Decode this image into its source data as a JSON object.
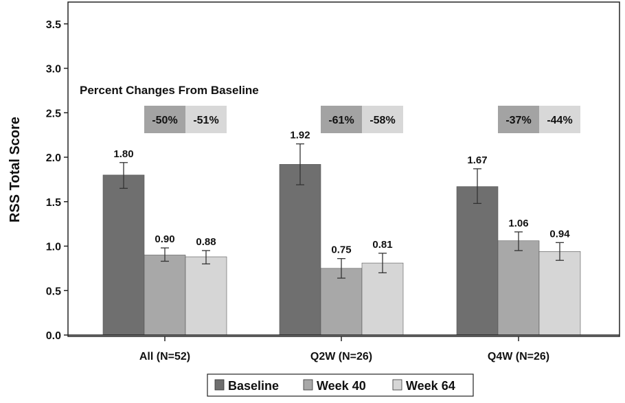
{
  "chart_data": {
    "type": "bar",
    "title": "",
    "xlabel": "",
    "ylabel": "RSS Total Score",
    "ylim": [
      0,
      3.6
    ],
    "yticks": [
      "0.0",
      "0.5",
      "1.0",
      "1.5",
      "2.0",
      "2.5",
      "3.0",
      "3.5"
    ],
    "categories": [
      "All (N=52)",
      "Q2W (N=26)",
      "Q4W (N=26)"
    ],
    "series": [
      {
        "name": "Baseline",
        "color": "#6f6f6f",
        "values": [
          1.8,
          1.92,
          1.67
        ],
        "labels": [
          "1.80",
          "1.92",
          "1.67"
        ],
        "err_low": [
          1.65,
          1.69,
          1.48
        ],
        "err_high": [
          1.94,
          2.15,
          1.87
        ]
      },
      {
        "name": "Week 40",
        "color": "#a8a8a8",
        "values": [
          0.9,
          0.75,
          1.06
        ],
        "labels": [
          "0.90",
          "0.75",
          "1.06"
        ],
        "err_low": [
          0.83,
          0.64,
          0.95
        ],
        "err_high": [
          0.98,
          0.86,
          1.16
        ]
      },
      {
        "name": "Week 64",
        "color": "#d6d6d6",
        "values": [
          0.88,
          0.81,
          0.94
        ],
        "labels": [
          "0.88",
          "0.81",
          "0.94"
        ],
        "err_low": [
          0.8,
          0.7,
          0.84
        ],
        "err_high": [
          0.95,
          0.92,
          1.04
        ]
      }
    ],
    "annotation": {
      "title": "Percent Changes From Baseline",
      "groups": [
        {
          "week40": "-50%",
          "week64": "-51%"
        },
        {
          "week40": "-61%",
          "week64": "-58%"
        },
        {
          "week40": "-37%",
          "week64": "-44%"
        }
      ],
      "week40_color": "#a3a3a3",
      "week64_color": "#d8d8d8"
    },
    "legend": {
      "position": "bottom",
      "labels": [
        "Baseline",
        "Week 40",
        "Week 64"
      ]
    }
  }
}
